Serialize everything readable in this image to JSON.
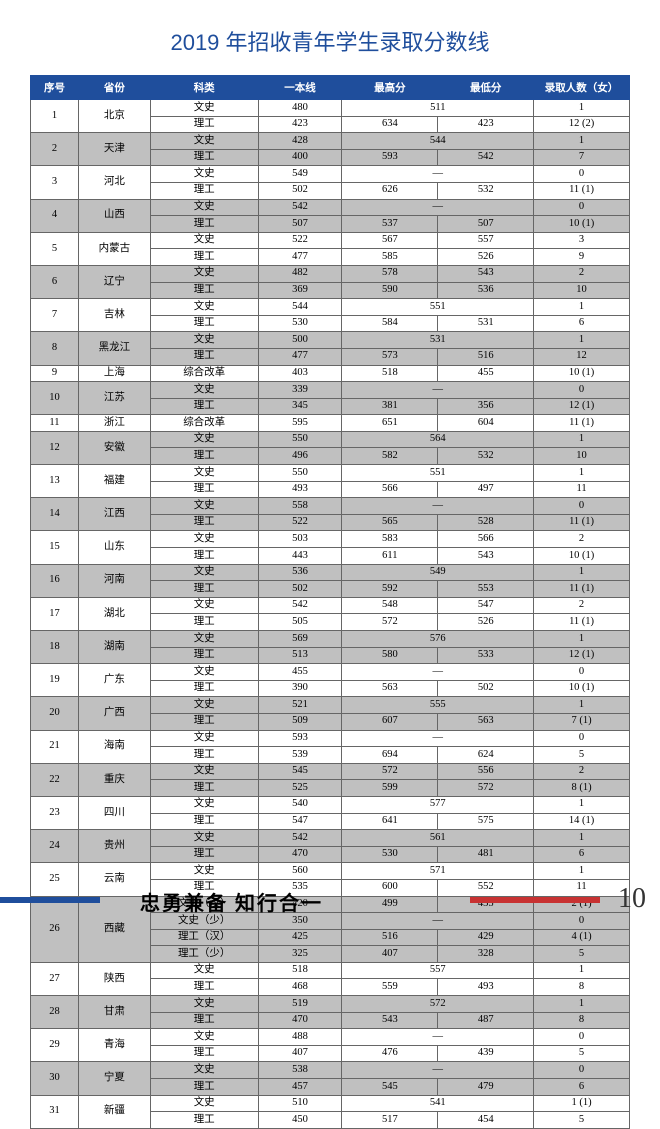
{
  "title": "2019 年招收青年学生录取分数线",
  "columns": [
    "序号",
    "省份",
    "科类",
    "一本线",
    "最高分",
    "最低分",
    "录取人数（女）"
  ],
  "motto": "忠勇兼备 知行合一",
  "page_number": "10",
  "colors": {
    "header_bg": "#1f4e9c",
    "gray_bg": "#c0c0c0",
    "left_bar": "#1f4e9c",
    "right_bar": "#c83232"
  },
  "rows": [
    {
      "n": "1",
      "p": "北京",
      "gray": false,
      "r": [
        {
          "k": "文史",
          "yb": "480",
          "hi": "511",
          "lo": "",
          "cnt": "1",
          "span": true
        },
        {
          "k": "理工",
          "yb": "423",
          "hi": "634",
          "lo": "423",
          "cnt": "12 (2)"
        }
      ]
    },
    {
      "n": "2",
      "p": "天津",
      "gray": true,
      "r": [
        {
          "k": "文史",
          "yb": "428",
          "hi": "544",
          "lo": "",
          "cnt": "1",
          "span": true
        },
        {
          "k": "理工",
          "yb": "400",
          "hi": "593",
          "lo": "542",
          "cnt": "7"
        }
      ]
    },
    {
      "n": "3",
      "p": "河北",
      "gray": false,
      "r": [
        {
          "k": "文史",
          "yb": "549",
          "hi": "—",
          "lo": "",
          "cnt": "0",
          "span": true
        },
        {
          "k": "理工",
          "yb": "502",
          "hi": "626",
          "lo": "532",
          "cnt": "11 (1)"
        }
      ]
    },
    {
      "n": "4",
      "p": "山西",
      "gray": true,
      "r": [
        {
          "k": "文史",
          "yb": "542",
          "hi": "—",
          "lo": "",
          "cnt": "0",
          "span": true
        },
        {
          "k": "理工",
          "yb": "507",
          "hi": "537",
          "lo": "507",
          "cnt": "10 (1)"
        }
      ]
    },
    {
      "n": "5",
      "p": "内蒙古",
      "gray": false,
      "r": [
        {
          "k": "文史",
          "yb": "522",
          "hi": "567",
          "lo": "557",
          "cnt": "3"
        },
        {
          "k": "理工",
          "yb": "477",
          "hi": "585",
          "lo": "526",
          "cnt": "9"
        }
      ]
    },
    {
      "n": "6",
      "p": "辽宁",
      "gray": true,
      "r": [
        {
          "k": "文史",
          "yb": "482",
          "hi": "578",
          "lo": "543",
          "cnt": "2"
        },
        {
          "k": "理工",
          "yb": "369",
          "hi": "590",
          "lo": "536",
          "cnt": "10"
        }
      ]
    },
    {
      "n": "7",
      "p": "吉林",
      "gray": false,
      "r": [
        {
          "k": "文史",
          "yb": "544",
          "hi": "551",
          "lo": "",
          "cnt": "1",
          "span": true
        },
        {
          "k": "理工",
          "yb": "530",
          "hi": "584",
          "lo": "531",
          "cnt": "6"
        }
      ]
    },
    {
      "n": "8",
      "p": "黑龙江",
      "gray": true,
      "r": [
        {
          "k": "文史",
          "yb": "500",
          "hi": "531",
          "lo": "",
          "cnt": "1",
          "span": true
        },
        {
          "k": "理工",
          "yb": "477",
          "hi": "573",
          "lo": "516",
          "cnt": "12"
        }
      ]
    },
    {
      "n": "9",
      "p": "上海",
      "gray": false,
      "r": [
        {
          "k": "综合改革",
          "yb": "403",
          "hi": "518",
          "lo": "455",
          "cnt": "10 (1)"
        }
      ]
    },
    {
      "n": "10",
      "p": "江苏",
      "gray": true,
      "r": [
        {
          "k": "文史",
          "yb": "339",
          "hi": "—",
          "lo": "",
          "cnt": "0",
          "span": true
        },
        {
          "k": "理工",
          "yb": "345",
          "hi": "381",
          "lo": "356",
          "cnt": "12 (1)"
        }
      ]
    },
    {
      "n": "11",
      "p": "浙江",
      "gray": false,
      "r": [
        {
          "k": "综合改革",
          "yb": "595",
          "hi": "651",
          "lo": "604",
          "cnt": "11 (1)"
        }
      ]
    },
    {
      "n": "12",
      "p": "安徽",
      "gray": true,
      "r": [
        {
          "k": "文史",
          "yb": "550",
          "hi": "564",
          "lo": "",
          "cnt": "1",
          "span": true
        },
        {
          "k": "理工",
          "yb": "496",
          "hi": "582",
          "lo": "532",
          "cnt": "10"
        }
      ]
    },
    {
      "n": "13",
      "p": "福建",
      "gray": false,
      "r": [
        {
          "k": "文史",
          "yb": "550",
          "hi": "551",
          "lo": "",
          "cnt": "1",
          "span": true
        },
        {
          "k": "理工",
          "yb": "493",
          "hi": "566",
          "lo": "497",
          "cnt": "11"
        }
      ]
    },
    {
      "n": "14",
      "p": "江西",
      "gray": true,
      "r": [
        {
          "k": "文史",
          "yb": "558",
          "hi": "—",
          "lo": "",
          "cnt": "0",
          "span": true
        },
        {
          "k": "理工",
          "yb": "522",
          "hi": "565",
          "lo": "528",
          "cnt": "11 (1)"
        }
      ]
    },
    {
      "n": "15",
      "p": "山东",
      "gray": false,
      "r": [
        {
          "k": "文史",
          "yb": "503",
          "hi": "583",
          "lo": "566",
          "cnt": "2"
        },
        {
          "k": "理工",
          "yb": "443",
          "hi": "611",
          "lo": "543",
          "cnt": "10 (1)"
        }
      ]
    },
    {
      "n": "16",
      "p": "河南",
      "gray": true,
      "r": [
        {
          "k": "文史",
          "yb": "536",
          "hi": "549",
          "lo": "",
          "cnt": "1",
          "span": true
        },
        {
          "k": "理工",
          "yb": "502",
          "hi": "592",
          "lo": "553",
          "cnt": "11 (1)"
        }
      ]
    },
    {
      "n": "17",
      "p": "湖北",
      "gray": false,
      "r": [
        {
          "k": "文史",
          "yb": "542",
          "hi": "548",
          "lo": "547",
          "cnt": "2"
        },
        {
          "k": "理工",
          "yb": "505",
          "hi": "572",
          "lo": "526",
          "cnt": "11 (1)"
        }
      ]
    },
    {
      "n": "18",
      "p": "湖南",
      "gray": true,
      "r": [
        {
          "k": "文史",
          "yb": "569",
          "hi": "576",
          "lo": "",
          "cnt": "1",
          "span": true
        },
        {
          "k": "理工",
          "yb": "513",
          "hi": "580",
          "lo": "533",
          "cnt": "12 (1)"
        }
      ]
    },
    {
      "n": "19",
      "p": "广东",
      "gray": false,
      "r": [
        {
          "k": "文史",
          "yb": "455",
          "hi": "—",
          "lo": "",
          "cnt": "0",
          "span": true
        },
        {
          "k": "理工",
          "yb": "390",
          "hi": "563",
          "lo": "502",
          "cnt": "10 (1)"
        }
      ]
    },
    {
      "n": "20",
      "p": "广西",
      "gray": true,
      "r": [
        {
          "k": "文史",
          "yb": "521",
          "hi": "555",
          "lo": "",
          "cnt": "1",
          "span": true
        },
        {
          "k": "理工",
          "yb": "509",
          "hi": "607",
          "lo": "563",
          "cnt": "7 (1)"
        }
      ]
    },
    {
      "n": "21",
      "p": "海南",
      "gray": false,
      "r": [
        {
          "k": "文史",
          "yb": "593",
          "hi": "—",
          "lo": "",
          "cnt": "0",
          "span": true
        },
        {
          "k": "理工",
          "yb": "539",
          "hi": "694",
          "lo": "624",
          "cnt": "5"
        }
      ]
    },
    {
      "n": "22",
      "p": "重庆",
      "gray": true,
      "r": [
        {
          "k": "文史",
          "yb": "545",
          "hi": "572",
          "lo": "556",
          "cnt": "2"
        },
        {
          "k": "理工",
          "yb": "525",
          "hi": "599",
          "lo": "572",
          "cnt": "8 (1)"
        }
      ]
    },
    {
      "n": "23",
      "p": "四川",
      "gray": false,
      "r": [
        {
          "k": "文史",
          "yb": "540",
          "hi": "577",
          "lo": "",
          "cnt": "1",
          "span": true
        },
        {
          "k": "理工",
          "yb": "547",
          "hi": "641",
          "lo": "575",
          "cnt": "14 (1)"
        }
      ]
    },
    {
      "n": "24",
      "p": "贵州",
      "gray": true,
      "r": [
        {
          "k": "文史",
          "yb": "542",
          "hi": "561",
          "lo": "",
          "cnt": "1",
          "span": true
        },
        {
          "k": "理工",
          "yb": "470",
          "hi": "530",
          "lo": "481",
          "cnt": "6"
        }
      ]
    },
    {
      "n": "25",
      "p": "云南",
      "gray": false,
      "r": [
        {
          "k": "文史",
          "yb": "560",
          "hi": "571",
          "lo": "",
          "cnt": "1",
          "span": true
        },
        {
          "k": "理工",
          "yb": "535",
          "hi": "600",
          "lo": "552",
          "cnt": "11"
        }
      ]
    },
    {
      "n": "26",
      "p": "西藏",
      "gray": true,
      "r": [
        {
          "k": "文史（汉）",
          "yb": "420",
          "hi": "499",
          "lo": "435",
          "cnt": "2 (1)"
        },
        {
          "k": "文史（少）",
          "yb": "350",
          "hi": "—",
          "lo": "",
          "cnt": "0",
          "span": true
        },
        {
          "k": "理工（汉）",
          "yb": "425",
          "hi": "516",
          "lo": "429",
          "cnt": "4 (1)"
        },
        {
          "k": "理工（少）",
          "yb": "325",
          "hi": "407",
          "lo": "328",
          "cnt": "5"
        }
      ]
    },
    {
      "n": "27",
      "p": "陕西",
      "gray": false,
      "r": [
        {
          "k": "文史",
          "yb": "518",
          "hi": "557",
          "lo": "",
          "cnt": "1",
          "span": true
        },
        {
          "k": "理工",
          "yb": "468",
          "hi": "559",
          "lo": "493",
          "cnt": "8"
        }
      ]
    },
    {
      "n": "28",
      "p": "甘肃",
      "gray": true,
      "r": [
        {
          "k": "文史",
          "yb": "519",
          "hi": "572",
          "lo": "",
          "cnt": "1",
          "span": true
        },
        {
          "k": "理工",
          "yb": "470",
          "hi": "543",
          "lo": "487",
          "cnt": "8"
        }
      ]
    },
    {
      "n": "29",
      "p": "青海",
      "gray": false,
      "r": [
        {
          "k": "文史",
          "yb": "488",
          "hi": "—",
          "lo": "",
          "cnt": "0",
          "span": true
        },
        {
          "k": "理工",
          "yb": "407",
          "hi": "476",
          "lo": "439",
          "cnt": "5"
        }
      ]
    },
    {
      "n": "30",
      "p": "宁夏",
      "gray": true,
      "r": [
        {
          "k": "文史",
          "yb": "538",
          "hi": "—",
          "lo": "",
          "cnt": "0",
          "span": true
        },
        {
          "k": "理工",
          "yb": "457",
          "hi": "545",
          "lo": "479",
          "cnt": "6"
        }
      ]
    },
    {
      "n": "31",
      "p": "新疆",
      "gray": false,
      "r": [
        {
          "k": "文史",
          "yb": "510",
          "hi": "541",
          "lo": "",
          "cnt": "1 (1)",
          "span": true
        },
        {
          "k": "理工",
          "yb": "450",
          "hi": "517",
          "lo": "454",
          "cnt": "5"
        }
      ]
    }
  ]
}
